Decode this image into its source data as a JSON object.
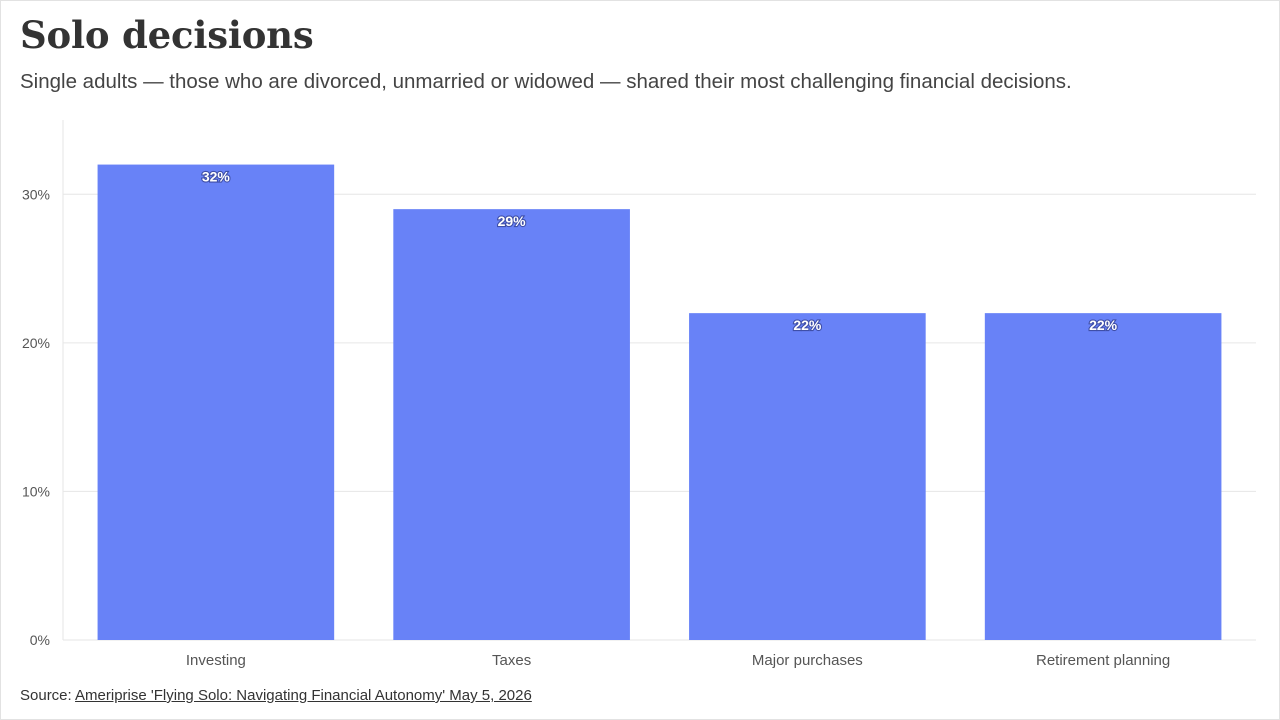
{
  "header": {
    "title": "Solo decisions",
    "subtitle": "Single adults — those who are divorced, unmarried or widowed — shared their most challenging financial decisions."
  },
  "footer": {
    "source_label": "Source:",
    "source_link_text": "Ameriprise 'Flying Solo: Navigating Financial Autonomy' May 5, 2026"
  },
  "colors": {
    "bar": "#6882f7",
    "grid": "#e6e6e6",
    "axis_text": "#555555"
  },
  "chart_data": {
    "type": "bar",
    "categories": [
      "Investing",
      "Taxes",
      "Major purchases",
      "Retirement planning"
    ],
    "values": [
      32,
      29,
      22,
      22
    ],
    "data_labels": [
      "32%",
      "29%",
      "22%",
      "22%"
    ],
    "yticks": [
      0,
      10,
      20,
      30
    ],
    "ytick_labels": [
      "0%",
      "10%",
      "20%",
      "30%"
    ],
    "ylim": [
      0,
      35
    ],
    "grid": true,
    "legend": "none"
  }
}
